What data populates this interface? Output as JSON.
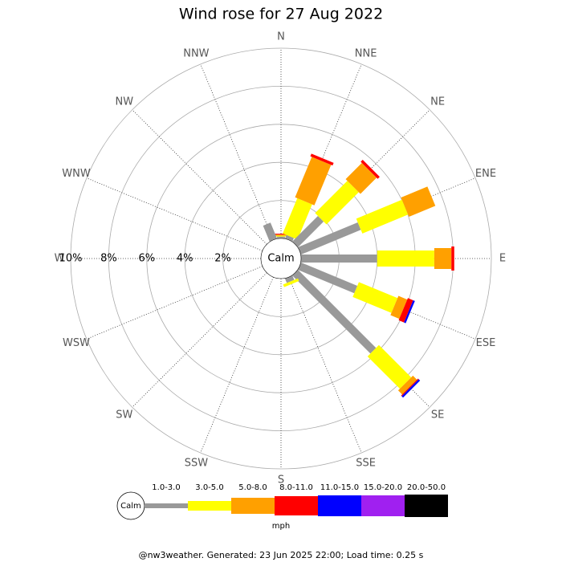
{
  "chart_data": {
    "type": "wind-rose",
    "title": "Wind rose for 27 Aug 2022",
    "directions": [
      "N",
      "NNE",
      "NE",
      "ENE",
      "E",
      "ESE",
      "SE",
      "SSE",
      "S",
      "SSW",
      "SW",
      "WSW",
      "W",
      "WNW",
      "NW",
      "NNW"
    ],
    "rlim": [
      0,
      10
    ],
    "rticks": [
      {
        "value": 2,
        "label": "2%"
      },
      {
        "value": 4,
        "label": "4%"
      },
      {
        "value": 6,
        "label": "6%"
      },
      {
        "value": 8,
        "label": "8%"
      },
      {
        "value": 10,
        "label": "10%"
      }
    ],
    "calm_label": "Calm",
    "unit": "mph",
    "series": [
      {
        "name": "1.0-3.0",
        "color": "#999999",
        "values": [
          0.1,
          0.2,
          1.9,
          3.4,
          4.0,
          3.2,
          5.8,
          0.25,
          0,
          0,
          0,
          0,
          0,
          0,
          0,
          0.9
        ]
      },
      {
        "name": "3.0-5.0",
        "color": "#ffff00",
        "values": [
          0.05,
          2.0,
          2.4,
          2.6,
          3.0,
          2.2,
          2.4,
          0.15,
          0,
          0,
          0,
          0,
          0,
          0,
          0,
          0
        ]
      },
      {
        "name": "5.0-8.0",
        "color": "#ffa000",
        "values": [
          0.05,
          2.3,
          1.2,
          1.5,
          0.9,
          0.5,
          0.3,
          0,
          0,
          0,
          0,
          0,
          0,
          0,
          0,
          0
        ]
      },
      {
        "name": "8.0-11.0",
        "color": "#ff0000",
        "values": [
          0.05,
          0.15,
          0.15,
          0,
          0.15,
          0.3,
          0.05,
          0,
          0,
          0,
          0,
          0,
          0,
          0,
          0,
          0
        ]
      },
      {
        "name": "11.0-15.0",
        "color": "#0000ff",
        "values": [
          0,
          0,
          0,
          0,
          0,
          0.1,
          0.1,
          0,
          0,
          0,
          0,
          0,
          0,
          0,
          0,
          0
        ]
      },
      {
        "name": "15.0-20.0",
        "color": "#a020f0",
        "values": [
          0,
          0,
          0,
          0,
          0,
          0,
          0,
          0,
          0,
          0,
          0,
          0,
          0,
          0,
          0,
          0
        ]
      },
      {
        "name": "20.0-50.0",
        "color": "#000000",
        "values": [
          0,
          0,
          0,
          0,
          0,
          0,
          0,
          0,
          0,
          0,
          0,
          0,
          0,
          0,
          0,
          0
        ]
      }
    ],
    "footer": "@nw3weather. Generated: 23 Jun 2025 22:00; Load time: 0.25 s"
  }
}
